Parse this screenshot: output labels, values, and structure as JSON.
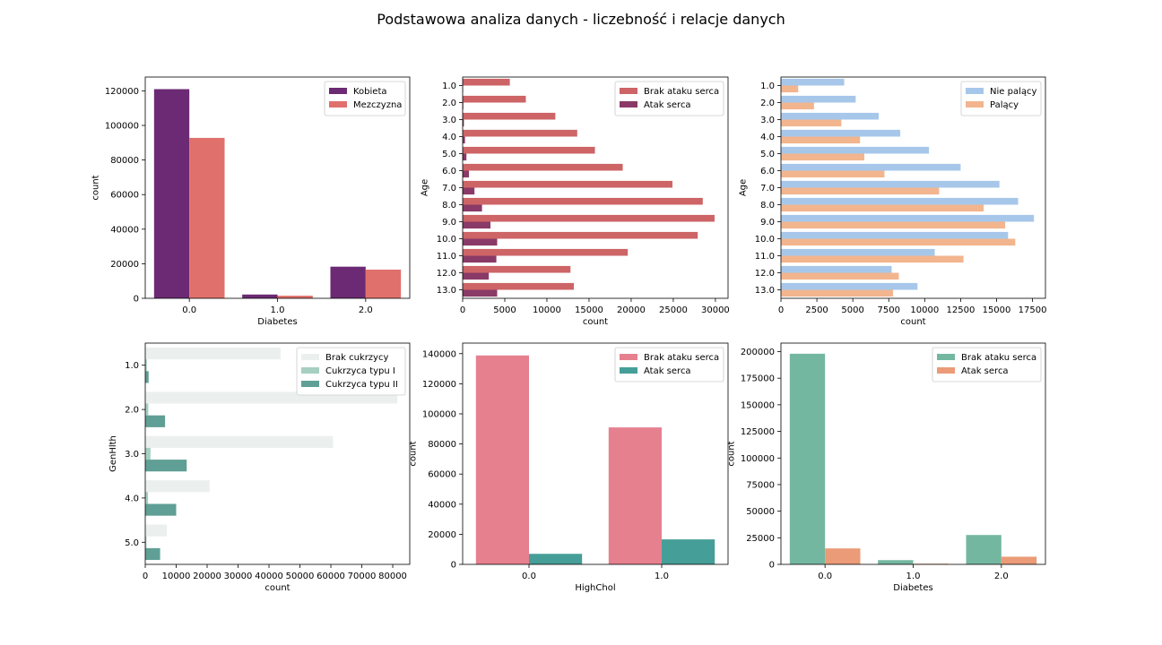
{
  "figure": {
    "title": "Podstawowa analiza danych - liczebność i relacje danych"
  },
  "chart_data": [
    {
      "id": "c1",
      "type": "bar",
      "orientation": "vertical",
      "xlabel": "Diabetes",
      "ylabel": "count",
      "categories": [
        "0.0",
        "1.0",
        "2.0"
      ],
      "ylim": [
        0,
        128000
      ],
      "ticks": [
        0,
        20000,
        40000,
        60000,
        80000,
        100000,
        120000
      ],
      "legend": "upper right",
      "series": [
        {
          "name": "Kobieta",
          "color": "#6b2a73",
          "values": [
            121000,
            2200,
            18300
          ]
        },
        {
          "name": "Mezczyzna",
          "color": "#e0706b",
          "values": [
            92800,
            1500,
            16600
          ]
        }
      ]
    },
    {
      "id": "c2",
      "type": "bar",
      "orientation": "horizontal",
      "xlabel": "count",
      "ylabel": "Age",
      "categories": [
        "1.0",
        "2.0",
        "3.0",
        "4.0",
        "5.0",
        "6.0",
        "7.0",
        "8.0",
        "9.0",
        "10.0",
        "11.0",
        "12.0",
        "13.0"
      ],
      "xlim": [
        0,
        31500
      ],
      "ticks": [
        0,
        5000,
        10000,
        15000,
        20000,
        25000,
        30000
      ],
      "legend": "upper right",
      "series": [
        {
          "name": "Brak ataku serca",
          "color": "#cd6466",
          "values": [
            5600,
            7500,
            11000,
            13600,
            15700,
            19000,
            24900,
            28500,
            29900,
            27900,
            19600,
            12800,
            13200
          ]
        },
        {
          "name": "Atak serca",
          "color": "#8a3a67",
          "values": [
            50,
            80,
            150,
            280,
            450,
            750,
            1400,
            2300,
            3300,
            4100,
            4000,
            3100,
            4100
          ]
        }
      ]
    },
    {
      "id": "c3",
      "type": "bar",
      "orientation": "horizontal",
      "xlabel": "count",
      "ylabel": "Age",
      "categories": [
        "1.0",
        "2.0",
        "3.0",
        "4.0",
        "5.0",
        "6.0",
        "7.0",
        "8.0",
        "9.0",
        "10.0",
        "11.0",
        "12.0",
        "13.0"
      ],
      "xlim": [
        0,
        18400
      ],
      "ticks": [
        0,
        2500,
        5000,
        7500,
        10000,
        12500,
        15000,
        17500
      ],
      "legend": "upper right",
      "series": [
        {
          "name": "Nie palący",
          "color": "#a7c7ea",
          "values": [
            4400,
            5200,
            6800,
            8300,
            10300,
            12500,
            15200,
            16500,
            17600,
            15800,
            10700,
            7700,
            9500
          ]
        },
        {
          "name": "Palący",
          "color": "#f2b58e",
          "values": [
            1200,
            2300,
            4200,
            5500,
            5800,
            7200,
            11000,
            14100,
            15600,
            16300,
            12700,
            8200,
            7800
          ]
        }
      ]
    },
    {
      "id": "c4",
      "type": "bar",
      "orientation": "horizontal",
      "xlabel": "count",
      "ylabel": "GenHlth",
      "categories": [
        "1.0",
        "2.0",
        "3.0",
        "4.0",
        "5.0"
      ],
      "xlim": [
        0,
        85500
      ],
      "ticks": [
        0,
        10000,
        20000,
        30000,
        40000,
        50000,
        60000,
        70000,
        80000
      ],
      "legend": "upper right",
      "series": [
        {
          "name": "Brak cukrzycy",
          "color": "#ebf0ef",
          "values": [
            43800,
            81500,
            60700,
            20800,
            7000
          ]
        },
        {
          "name": "Cukrzyca typu I",
          "color": "#a6cfc2",
          "values": [
            500,
            1000,
            1700,
            900,
            400
          ]
        },
        {
          "name": "Cukrzyca typu II",
          "color": "#5f9f95",
          "values": [
            1100,
            6400,
            13400,
            10000,
            4800
          ]
        }
      ]
    },
    {
      "id": "c5",
      "type": "bar",
      "orientation": "vertical",
      "xlabel": "HighChol",
      "ylabel": "count",
      "categories": [
        "0.0",
        "1.0"
      ],
      "ylim": [
        0,
        147000
      ],
      "ticks": [
        0,
        20000,
        40000,
        60000,
        80000,
        100000,
        120000,
        140000
      ],
      "legend": "upper right",
      "series": [
        {
          "name": "Brak ataku serca",
          "color": "#e6808f",
          "values": [
            138800,
            91000
          ]
        },
        {
          "name": "Atak serca",
          "color": "#459e97",
          "values": [
            7000,
            16600
          ]
        }
      ]
    },
    {
      "id": "c6",
      "type": "bar",
      "orientation": "vertical",
      "xlabel": "Diabetes",
      "ylabel": "count",
      "categories": [
        "0.0",
        "1.0",
        "2.0"
      ],
      "ylim": [
        0,
        208000
      ],
      "ticks": [
        0,
        25000,
        50000,
        75000,
        100000,
        125000,
        150000,
        175000,
        200000
      ],
      "legend": "upper right",
      "series": [
        {
          "name": "Brak ataku serca",
          "color": "#74b7a0",
          "values": [
            198000,
            4000,
            27600
          ]
        },
        {
          "name": "Atak serca",
          "color": "#eb9b77",
          "values": [
            15000,
            600,
            7200
          ]
        }
      ]
    }
  ]
}
